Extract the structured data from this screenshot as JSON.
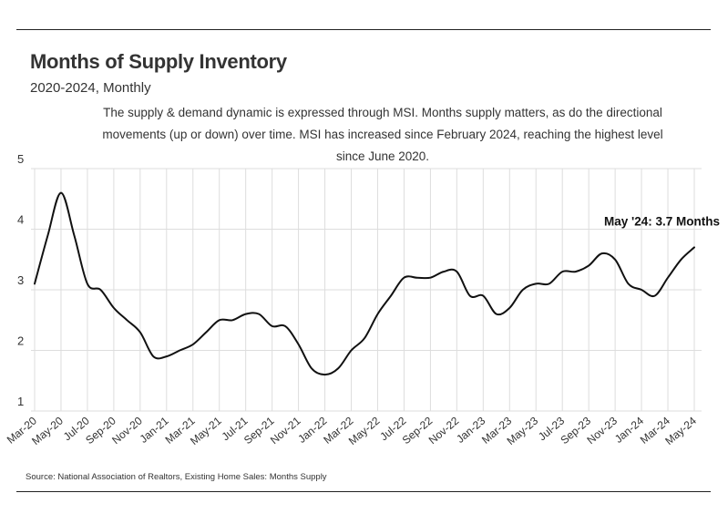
{
  "header": {
    "title": "Months of Supply Inventory",
    "subtitle": "2020-2024, Monthly",
    "description": "The supply & demand dynamic is expressed through MSI. Months supply matters, as do the directional movements (up or down) over time. MSI has increased since February 2024, reaching the highest level since June 2020."
  },
  "footer": {
    "source": "Source:  National Association of Realtors, Existing Home Sales: Months Supply"
  },
  "chart_data": {
    "type": "line",
    "title": "Months of Supply Inventory",
    "subtitle": "2020-2024, Monthly",
    "xlabel": "",
    "ylabel": "",
    "ylim": [
      1,
      5
    ],
    "yticks": [
      "1",
      "2",
      "3",
      "4",
      "5"
    ],
    "grid": true,
    "line_color": "#111111",
    "grid_color": "#dddddd",
    "categories": [
      "Mar-20",
      "Apr-20",
      "May-20",
      "Jun-20",
      "Jul-20",
      "Aug-20",
      "Sep-20",
      "Oct-20",
      "Nov-20",
      "Dec-20",
      "Jan-21",
      "Feb-21",
      "Mar-21",
      "Apr-21",
      "May-21",
      "Jun-21",
      "Jul-21",
      "Aug-21",
      "Sep-21",
      "Oct-21",
      "Nov-21",
      "Dec-21",
      "Jan-22",
      "Feb-22",
      "Mar-22",
      "Apr-22",
      "May-22",
      "Jun-22",
      "Jul-22",
      "Aug-22",
      "Sep-22",
      "Oct-22",
      "Nov-22",
      "Dec-22",
      "Jan-23",
      "Feb-23",
      "Mar-23",
      "Apr-23",
      "May-23",
      "Jun-23",
      "Jul-23",
      "Aug-23",
      "Sep-23",
      "Oct-23",
      "Nov-23",
      "Dec-23",
      "Jan-24",
      "Feb-24",
      "Mar-24",
      "Apr-24",
      "May-24"
    ],
    "x_tick_labels": [
      "Mar-20",
      "May-20",
      "Jul-20",
      "Sep-20",
      "Nov-20",
      "Jan-21",
      "Mar-21",
      "May-21",
      "Jul-21",
      "Sep-21",
      "Nov-21",
      "Jan-22",
      "Mar-22",
      "May-22",
      "Jul-22",
      "Sep-22",
      "Nov-22",
      "Jan-23",
      "Mar-23",
      "May-23",
      "Jul-23",
      "Sep-23",
      "Nov-23",
      "Jan-24",
      "Mar-24",
      "May-24"
    ],
    "series": [
      {
        "values": [
          3.1,
          3.9,
          4.6,
          3.9,
          3.1,
          3.0,
          2.7,
          2.5,
          2.3,
          1.9,
          1.9,
          2.0,
          2.1,
          2.3,
          2.5,
          2.5,
          2.6,
          2.6,
          2.4,
          2.4,
          2.1,
          1.7,
          1.6,
          1.7,
          2.0,
          2.2,
          2.6,
          2.9,
          3.2,
          3.2,
          3.2,
          3.3,
          3.3,
          2.9,
          2.9,
          2.6,
          2.7,
          3.0,
          3.1,
          3.1,
          3.3,
          3.3,
          3.4,
          3.6,
          3.5,
          3.1,
          3.0,
          2.9,
          3.2,
          3.5,
          3.7
        ]
      }
    ],
    "annotation": "May '24: 3.7 Months"
  }
}
